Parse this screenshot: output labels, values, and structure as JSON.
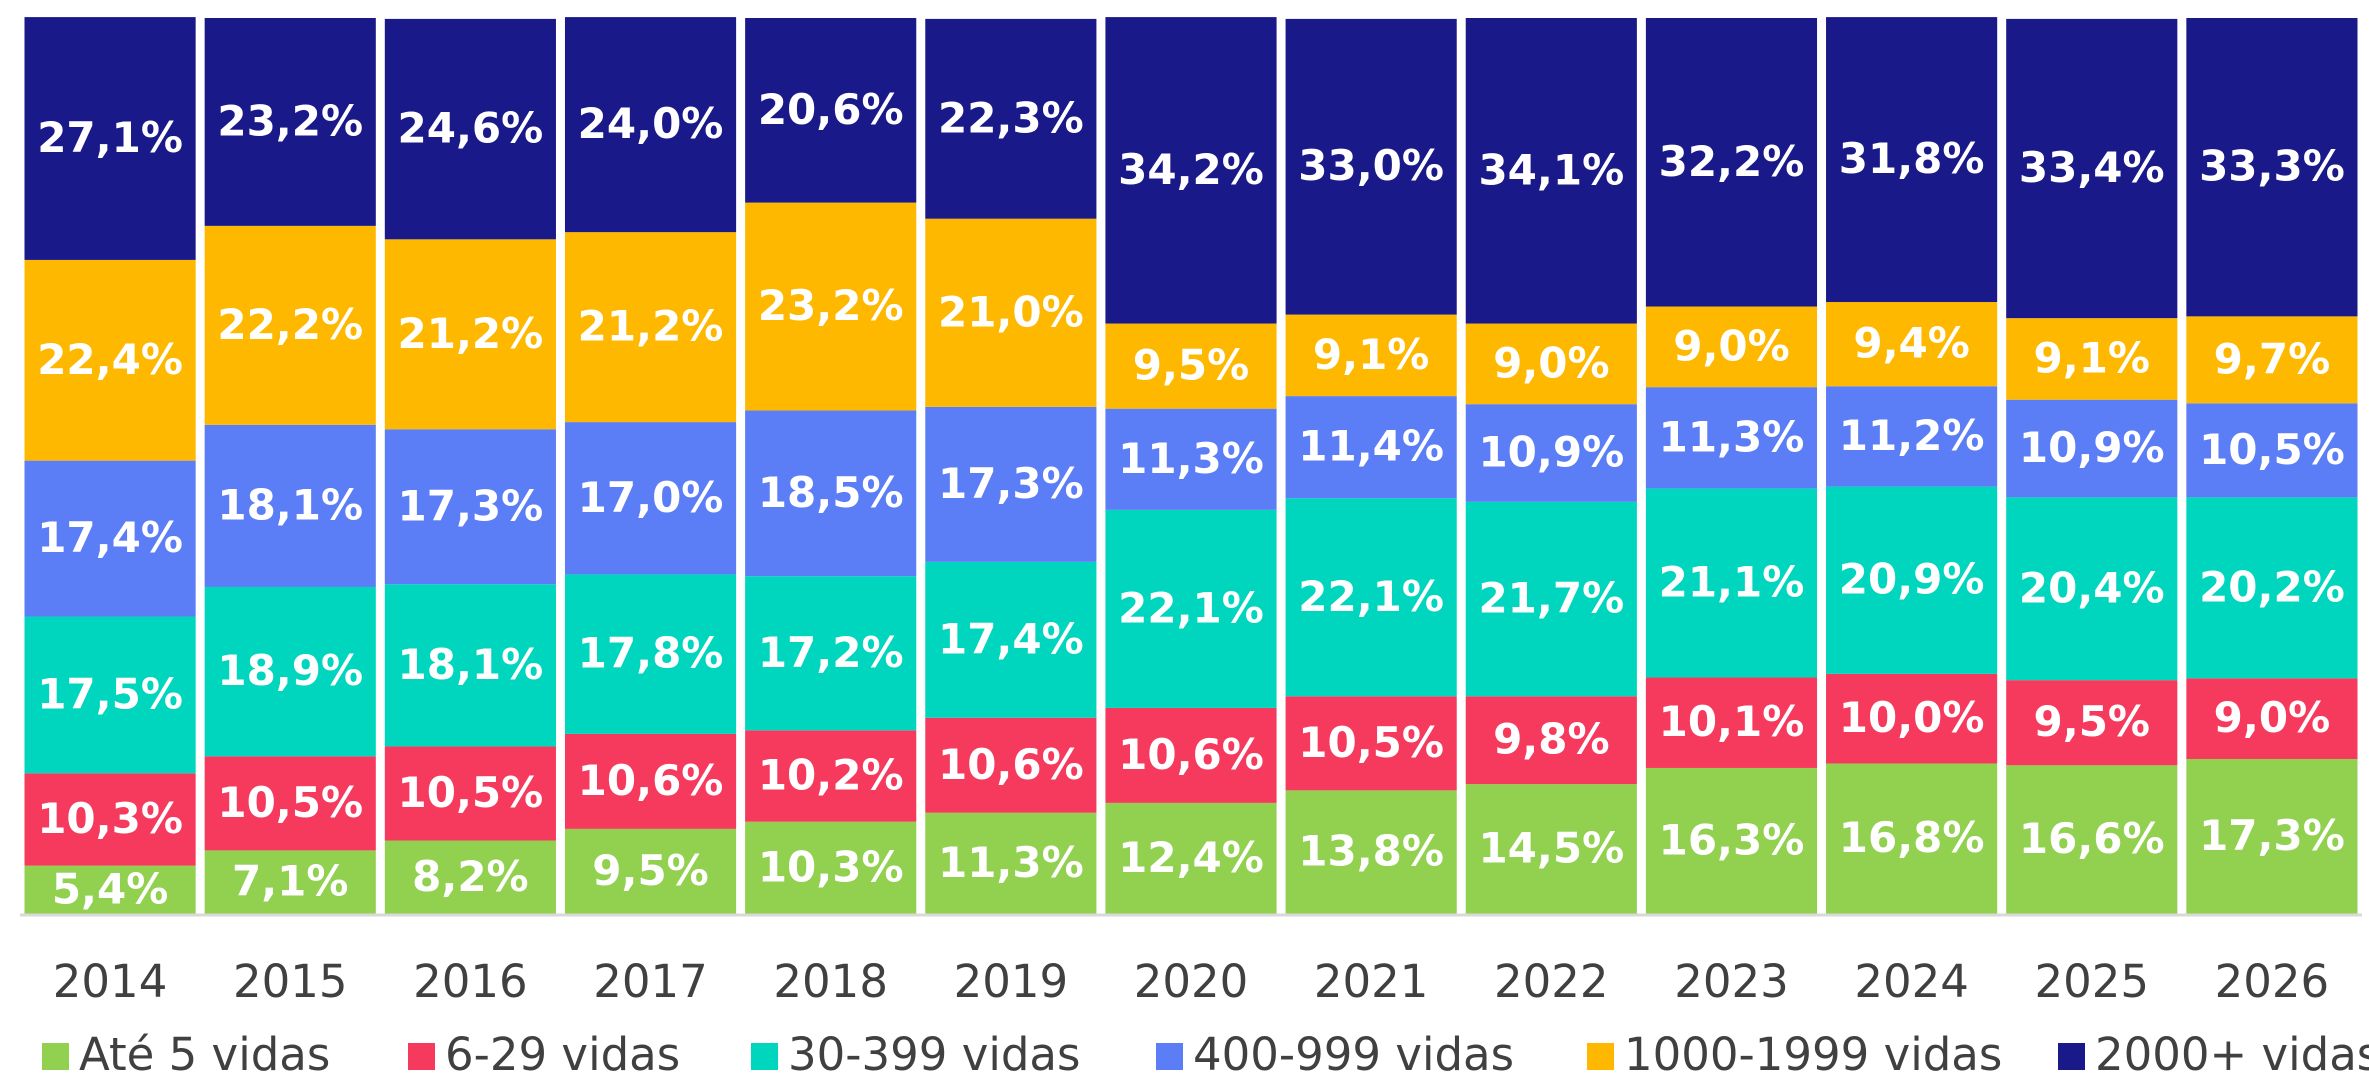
{
  "chart_data": {
    "type": "stacked_bar",
    "categories": [
      "2014",
      "2015",
      "2016",
      "2017",
      "2018",
      "2019",
      "2020",
      "2021",
      "2022",
      "2023",
      "2024",
      "2025",
      "2026"
    ],
    "ylim": [
      0,
      100
    ],
    "series": [
      {
        "name": "Até 5 vidas",
        "color": "#92d050",
        "values": [
          5.4,
          7.1,
          8.2,
          9.5,
          10.3,
          11.3,
          12.4,
          13.8,
          14.5,
          16.3,
          16.8,
          16.6,
          17.3
        ],
        "value_labels": [
          "5,4%",
          "7,1%",
          "8,2%",
          "9,5%",
          "10,3%",
          "11,3%",
          "12,4%",
          "13,8%",
          "14,5%",
          "16,3%",
          "16,8%",
          "16,6%",
          "17,3%"
        ]
      },
      {
        "name": "6-29 vidas",
        "color": "#f63a5e",
        "values": [
          10.3,
          10.5,
          10.5,
          10.6,
          10.2,
          10.6,
          10.6,
          10.5,
          9.8,
          10.1,
          10.0,
          9.5,
          9.0
        ],
        "value_labels": [
          "10,3%",
          "10,5%",
          "10,5%",
          "10,6%",
          "10,2%",
          "10,6%",
          "10,6%",
          "10,5%",
          "9,8%",
          "10,1%",
          "10,0%",
          "9,5%",
          "9,0%"
        ]
      },
      {
        "name": "30-399 vidas",
        "color": "#00d5be",
        "values": [
          17.5,
          18.9,
          18.1,
          17.8,
          17.2,
          17.4,
          22.1,
          22.1,
          21.7,
          21.1,
          20.9,
          20.4,
          20.2
        ],
        "value_labels": [
          "17,5%",
          "18,9%",
          "18,1%",
          "17,8%",
          "17,2%",
          "17,4%",
          "22,1%",
          "22,1%",
          "21,7%",
          "21,1%",
          "20,9%",
          "20,4%",
          "20,2%"
        ]
      },
      {
        "name": "400-999 vidas",
        "color": "#5b7ef6",
        "values": [
          17.4,
          18.1,
          17.3,
          17.0,
          18.5,
          17.3,
          11.3,
          11.4,
          10.9,
          11.3,
          11.2,
          10.9,
          10.5
        ],
        "value_labels": [
          "17,4%",
          "18,1%",
          "17,3%",
          "17,0%",
          "18,5%",
          "17,3%",
          "11,3%",
          "11,4%",
          "10,9%",
          "11,3%",
          "11,2%",
          "10,9%",
          "10,5%"
        ]
      },
      {
        "name": "1000-1999 vidas",
        "color": "#ffb800",
        "values": [
          22.4,
          22.2,
          21.2,
          21.2,
          23.2,
          21.0,
          9.5,
          9.1,
          9.0,
          9.0,
          9.4,
          9.1,
          9.7
        ],
        "value_labels": [
          "22,4%",
          "22,2%",
          "21,2%",
          "21,2%",
          "23,2%",
          "21,0%",
          "9,5%",
          "9,1%",
          "9,0%",
          "9,0%",
          "9,4%",
          "9,1%",
          "9,7%"
        ]
      },
      {
        "name": "2000+ vidas",
        "color": "#1a198a",
        "values": [
          27.1,
          23.2,
          24.6,
          24.0,
          20.6,
          22.3,
          34.2,
          33.0,
          34.1,
          32.2,
          31.8,
          33.4,
          33.3
        ],
        "value_labels": [
          "27,1%",
          "23,2%",
          "24,6%",
          "24,0%",
          "20,6%",
          "22,3%",
          "34,2%",
          "33,0%",
          "34,1%",
          "32,2%",
          "31,8%",
          "33,4%",
          "33,3%"
        ]
      }
    ]
  }
}
